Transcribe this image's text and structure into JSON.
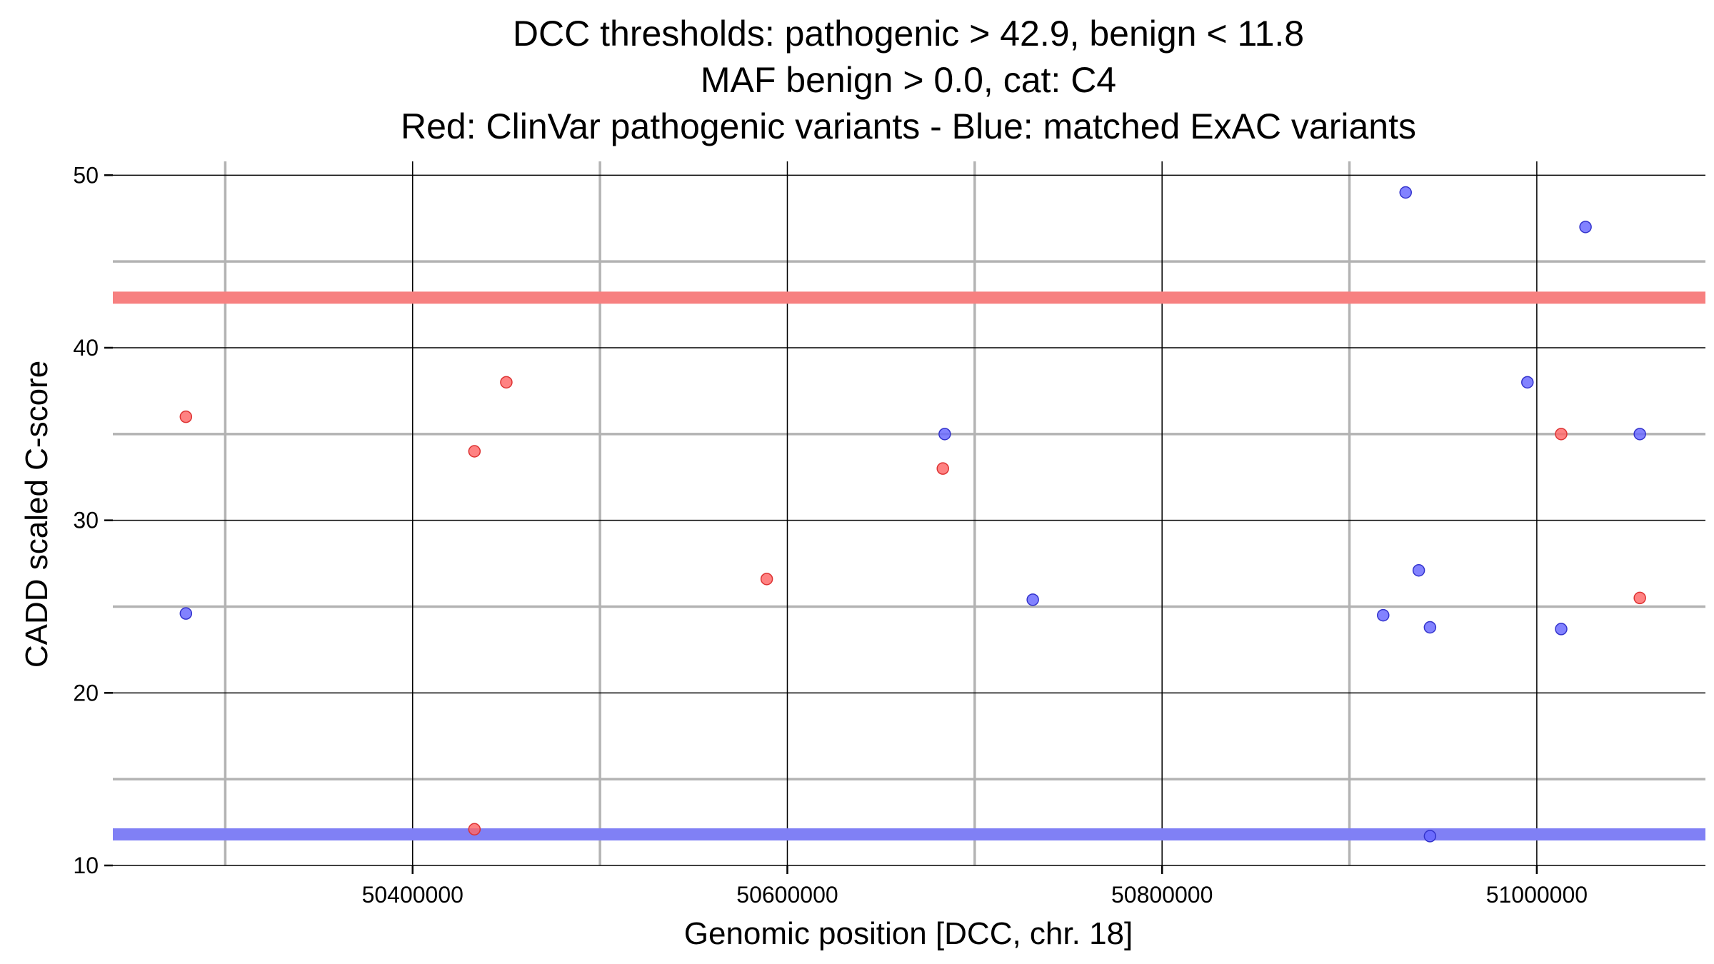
{
  "chart_data": {
    "type": "scatter",
    "title": [
      "DCC thresholds: pathogenic > 42.9, benign < 11.8",
      "MAF benign > 0.0, cat: C4",
      "Red: ClinVar pathogenic variants - Blue: matched ExAC variants"
    ],
    "xlabel": "Genomic position [DCC, chr. 18]",
    "ylabel": "CADD scaled C-score",
    "xlim": [
      50240000,
      51090000
    ],
    "ylim": [
      10,
      50.8
    ],
    "x_major_ticks": [
      50400000,
      50600000,
      50800000,
      51000000
    ],
    "x_tick_labels": [
      "50400000",
      "50600000",
      "50800000",
      "51000000"
    ],
    "x_minor_ticks": [
      50300000,
      50500000,
      50700000,
      50900000
    ],
    "y_major_ticks": [
      10,
      20,
      30,
      40,
      50
    ],
    "y_tick_labels": [
      "10",
      "20",
      "30",
      "40",
      "50"
    ],
    "y_minor_ticks": [
      15,
      25,
      35,
      45
    ],
    "thresholds": [
      {
        "name": "pathogenic",
        "value": 42.9,
        "color": "#f78080"
      },
      {
        "name": "benign",
        "value": 11.8,
        "color": "#8080f5"
      }
    ],
    "series": [
      {
        "name": "ClinVar pathogenic variants",
        "color": "#ff6666",
        "edge": "#dd3333",
        "points": [
          {
            "x": 50279000,
            "y": 36.0
          },
          {
            "x": 50433000,
            "y": 34.0
          },
          {
            "x": 50450000,
            "y": 38.0
          },
          {
            "x": 50433000,
            "y": 12.1
          },
          {
            "x": 50589000,
            "y": 26.6
          },
          {
            "x": 50683000,
            "y": 33.0
          },
          {
            "x": 51013000,
            "y": 35.0
          },
          {
            "x": 51055000,
            "y": 25.5
          }
        ]
      },
      {
        "name": "matched ExAC variants",
        "color": "#6666ff",
        "edge": "#3333cc",
        "points": [
          {
            "x": 50279000,
            "y": 24.6
          },
          {
            "x": 50684000,
            "y": 35.0
          },
          {
            "x": 50731000,
            "y": 25.4
          },
          {
            "x": 50918000,
            "y": 24.5
          },
          {
            "x": 50930000,
            "y": 49.0
          },
          {
            "x": 50937000,
            "y": 27.1
          },
          {
            "x": 50943000,
            "y": 23.8
          },
          {
            "x": 50943000,
            "y": 11.7
          },
          {
            "x": 50995000,
            "y": 38.0
          },
          {
            "x": 51013000,
            "y": 23.7
          },
          {
            "x": 51026000,
            "y": 47.0
          },
          {
            "x": 51055000,
            "y": 35.0
          }
        ]
      }
    ]
  }
}
